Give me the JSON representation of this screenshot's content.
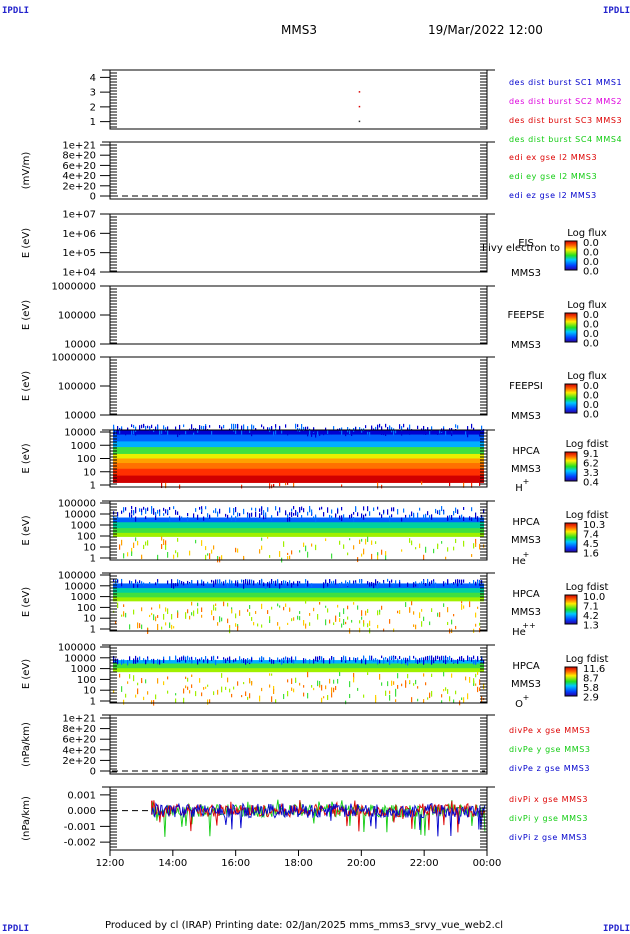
{
  "corner_label": "IPDLI",
  "header": {
    "spacecraft": "MMS3",
    "datetime": "19/Mar/2022 12:00"
  },
  "footer": {
    "text": "Produced by cl (IRAP)   Printing date: 02/Jan/2025   mms_mms3_srvy_vue_web2.cl"
  },
  "colors": {
    "red": "#dd0000",
    "green": "#11cc11",
    "blue": "#0000cc",
    "magenta": "#dd00dd"
  },
  "chart_data": [
    {
      "id": "availability",
      "type": "scatter",
      "y_ticks": [
        "4",
        "3",
        "2",
        "1"
      ],
      "ylim": [
        0.5,
        4.5
      ],
      "legend": [
        {
          "text": "des dist burst SC1 MMS1",
          "color": "#0000cc"
        },
        {
          "text": "des dist burst SC2 MMS2",
          "color": "#dd00dd"
        },
        {
          "text": "des dist burst SC3 MMS3",
          "color": "#dd0000"
        },
        {
          "text": "des dist burst SC4 MMS4",
          "color": "#11cc11"
        }
      ],
      "points": [
        {
          "x": "19:55",
          "y": 3,
          "color": "#dd0000"
        },
        {
          "x": "19:55",
          "y": 2,
          "color": "#dd0000"
        },
        {
          "x": "19:55",
          "y": 1,
          "color": "#333333"
        }
      ]
    },
    {
      "id": "edi",
      "type": "line",
      "ylabel": "(mV/m)",
      "y_ticks": [
        "1e+21",
        "8e+20",
        "6e+20",
        "4e+20",
        "2e+20",
        "0"
      ],
      "ylim": [
        0,
        1e+21
      ],
      "zero_line": true,
      "legend": [
        {
          "text": "edi ex gse l2 MMS3",
          "color": "#dd0000"
        },
        {
          "text": "edi ey gse l2 MMS3",
          "color": "#11cc11"
        },
        {
          "text": "edi ez gse l2 MMS3",
          "color": "#0000cc"
        }
      ]
    },
    {
      "id": "eis",
      "type": "heatmap",
      "ylabel": "E (eV)",
      "y_ticks": [
        "1e+07",
        "1e+06",
        "1e+05",
        "1e+04"
      ],
      "scale": "log",
      "instrument": "EIS",
      "overlay": "I ivy electron to",
      "sc": "MMS3",
      "colorbar": {
        "title": "Log flux",
        "ticks": [
          "0.0",
          "0.0",
          "0.0",
          "0.0"
        ]
      }
    },
    {
      "id": "feepse",
      "type": "heatmap",
      "ylabel": "E (eV)",
      "y_ticks": [
        "1000000",
        "100000",
        "10000"
      ],
      "scale": "log",
      "instrument": "FEEPSE",
      "sc": "MMS3",
      "colorbar": {
        "title": "Log flux",
        "ticks": [
          "0.0",
          "0.0",
          "0.0",
          "0.0"
        ]
      }
    },
    {
      "id": "feepsi",
      "type": "heatmap",
      "ylabel": "E (eV)",
      "y_ticks": [
        "1000000",
        "100000",
        "10000"
      ],
      "scale": "log",
      "instrument": "FEEPSI",
      "sc": "MMS3",
      "colorbar": {
        "title": "Log flux",
        "ticks": [
          "0.0",
          "0.0",
          "0.0",
          "0.0"
        ]
      }
    },
    {
      "id": "hpca_h",
      "type": "heatmap",
      "ylabel": "E (eV)",
      "y_ticks": [
        "10000",
        "1000",
        "100",
        "10",
        "1"
      ],
      "scale": "log",
      "instrument": "HPCA",
      "sc": "MMS3",
      "species": "H",
      "charge": "+",
      "colorbar": {
        "title": "Log fdist",
        "ticks": [
          "9.1",
          "6.2",
          "3.3",
          "0.4"
        ]
      }
    },
    {
      "id": "hpca_he",
      "type": "heatmap",
      "ylabel": "E (eV)",
      "y_ticks": [
        "100000",
        "10000",
        "1000",
        "100",
        "10",
        "1"
      ],
      "scale": "log",
      "instrument": "HPCA",
      "sc": "MMS3",
      "species": "He",
      "charge": "+",
      "colorbar": {
        "title": "Log fdist",
        "ticks": [
          "10.3",
          "7.4",
          "4.5",
          "1.6"
        ]
      }
    },
    {
      "id": "hpca_hepp",
      "type": "heatmap",
      "ylabel": "E (eV)",
      "y_ticks": [
        "100000",
        "10000",
        "1000",
        "100",
        "10",
        "1"
      ],
      "scale": "log",
      "instrument": "HPCA",
      "sc": "MMS3",
      "species": "He",
      "charge": "++",
      "colorbar": {
        "title": "Log fdist",
        "ticks": [
          "10.0",
          "7.1",
          "4.2",
          "1.3"
        ]
      }
    },
    {
      "id": "hpca_o",
      "type": "heatmap",
      "ylabel": "E (eV)",
      "y_ticks": [
        "100000",
        "10000",
        "1000",
        "100",
        "10",
        "1"
      ],
      "scale": "log",
      "instrument": "HPCA",
      "sc": "MMS3",
      "species": "O",
      "charge": "+",
      "colorbar": {
        "title": "Log fdist",
        "ticks": [
          "11.6",
          "8.7",
          "5.8",
          "2.9"
        ]
      }
    },
    {
      "id": "divpe",
      "type": "line",
      "ylabel": "(nPa/km)",
      "y_ticks": [
        "1e+21",
        "8e+20",
        "6e+20",
        "4e+20",
        "2e+20",
        "0"
      ],
      "ylim": [
        0,
        1e+21
      ],
      "zero_line": true,
      "legend": [
        {
          "text": "divPe x gse MMS3",
          "color": "#dd0000"
        },
        {
          "text": "divPe y gse MMS3",
          "color": "#11cc11"
        },
        {
          "text": "divPe z gse MMS3",
          "color": "#0000cc"
        }
      ]
    },
    {
      "id": "divpi",
      "type": "line",
      "ylabel": "(nPa/km)",
      "y_ticks": [
        "0.001",
        "0.000",
        "-0.001",
        "-0.002"
      ],
      "ylim": [
        -0.0025,
        0.0015
      ],
      "zero_line": true,
      "legend": [
        {
          "text": "divPi x gse MMS3",
          "color": "#dd0000"
        },
        {
          "text": "divPi y gse MMS3",
          "color": "#11cc11"
        },
        {
          "text": "divPi z gse MMS3",
          "color": "#0000cc"
        }
      ],
      "data_start": "13:20"
    }
  ],
  "x_axis": {
    "ticks": [
      "12:00",
      "14:00",
      "16:00",
      "18:00",
      "20:00",
      "22:00",
      "00:00"
    ],
    "range_hours": [
      12,
      24
    ]
  }
}
